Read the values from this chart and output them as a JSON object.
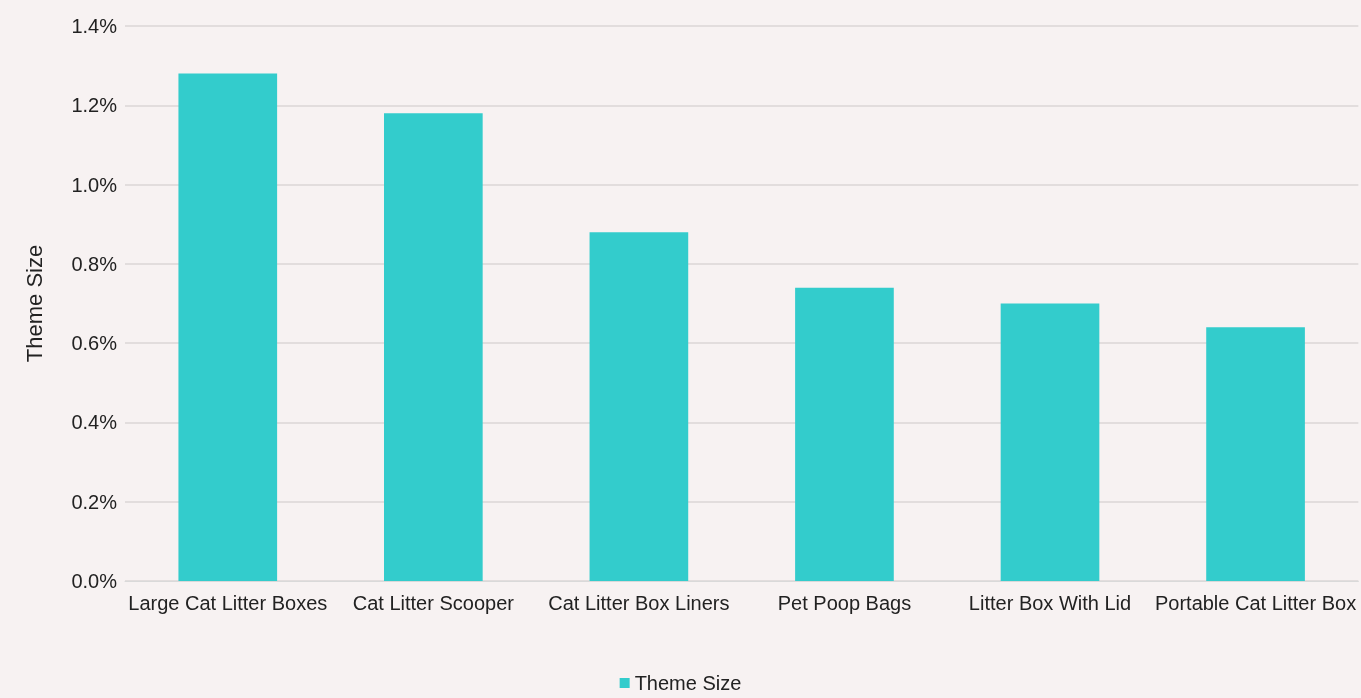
{
  "chart_data": {
    "type": "bar",
    "ylabel": "Theme Size",
    "categories": [
      "Large Cat Litter Boxes",
      "Cat Litter Scooper",
      "Cat Litter Box Liners",
      "Pet Poop Bags",
      "Litter Box With Lid",
      "Portable Cat Litter Box"
    ],
    "series": [
      {
        "name": "Theme Size",
        "color": "#33cccc",
        "values": [
          1.28,
          1.18,
          0.88,
          0.74,
          0.7,
          0.64
        ]
      }
    ],
    "ylim": [
      0,
      1.4
    ],
    "yticks": [
      {
        "value": 0,
        "label": "0.0%"
      },
      {
        "value": 0.2,
        "label": "0.2%"
      },
      {
        "value": 0.4,
        "label": "0.4%"
      },
      {
        "value": 0.6,
        "label": "0.6%"
      },
      {
        "value": 0.8,
        "label": "0.8%"
      },
      {
        "value": 1.0,
        "label": "1.0%"
      },
      {
        "value": 1.2,
        "label": "1.2%"
      },
      {
        "value": 1.4,
        "label": "1.4%"
      }
    ],
    "grid": "y",
    "legend": "bottom"
  }
}
